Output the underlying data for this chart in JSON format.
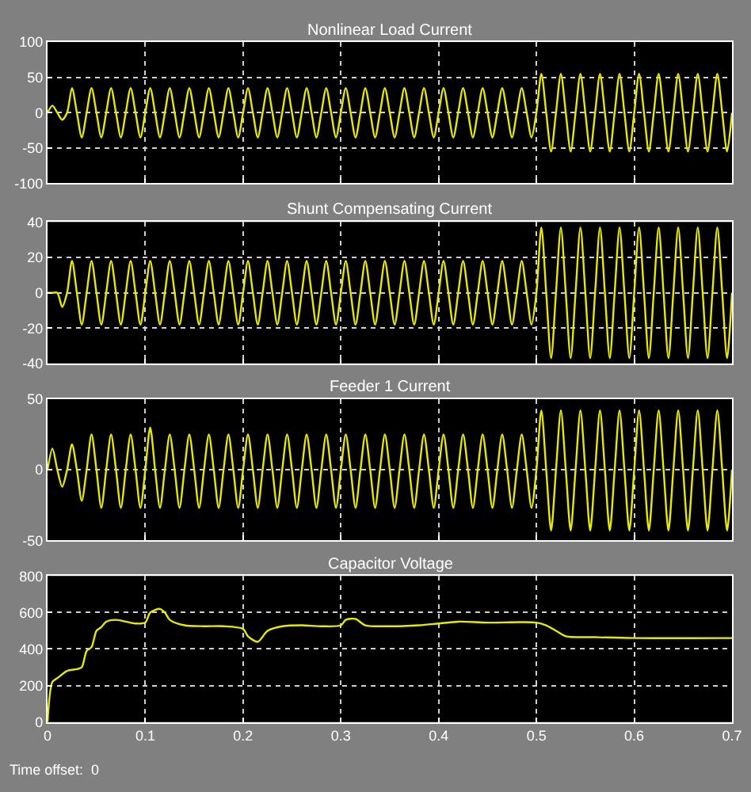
{
  "chart_data": [
    {
      "type": "line",
      "title": "Nonlinear Load Current",
      "color": "#e8e800",
      "grid": true,
      "tick_labels": "y",
      "xlim": [
        0,
        0.7
      ],
      "xticks": [
        0,
        0.1,
        0.2,
        0.3,
        0.4,
        0.5,
        0.6,
        0.7
      ],
      "ylim": [
        -100,
        100
      ],
      "yticks": [
        -100,
        -50,
        0,
        50,
        100
      ],
      "x": [
        0,
        0.005,
        0.01,
        0.015,
        0.02,
        0.025,
        0.03,
        0.035,
        0.04,
        0.045,
        0.05,
        0.055,
        0.06,
        0.065,
        0.07,
        0.075,
        0.08,
        0.085,
        0.09,
        0.095,
        0.1,
        0.105,
        0.11,
        0.115,
        0.12,
        0.125,
        0.13,
        0.135,
        0.14,
        0.145,
        0.15,
        0.155,
        0.16,
        0.165,
        0.17,
        0.175,
        0.18,
        0.185,
        0.19,
        0.195,
        0.2,
        0.205,
        0.21,
        0.215,
        0.22,
        0.225,
        0.23,
        0.235,
        0.24,
        0.245,
        0.25,
        0.255,
        0.26,
        0.265,
        0.27,
        0.275,
        0.28,
        0.285,
        0.29,
        0.295,
        0.3,
        0.305,
        0.31,
        0.315,
        0.32,
        0.325,
        0.33,
        0.335,
        0.34,
        0.345,
        0.35,
        0.355,
        0.36,
        0.365,
        0.37,
        0.375,
        0.38,
        0.385,
        0.39,
        0.395,
        0.4,
        0.405,
        0.41,
        0.415,
        0.42,
        0.425,
        0.43,
        0.435,
        0.44,
        0.445,
        0.45,
        0.455,
        0.46,
        0.465,
        0.47,
        0.475,
        0.48,
        0.485,
        0.49,
        0.495,
        0.5,
        0.505,
        0.51,
        0.515,
        0.52,
        0.525,
        0.53,
        0.535,
        0.54,
        0.545,
        0.55,
        0.555,
        0.56,
        0.565,
        0.57,
        0.575,
        0.58,
        0.585,
        0.59,
        0.595,
        0.6,
        0.605,
        0.61,
        0.615,
        0.62,
        0.625,
        0.63,
        0.635,
        0.64,
        0.645,
        0.65,
        0.655,
        0.66,
        0.665,
        0.67,
        0.675,
        0.68,
        0.685,
        0.69,
        0.695,
        0.7
      ],
      "values": [
        0,
        10,
        0,
        -10,
        0,
        35,
        0,
        -35,
        0,
        35,
        0,
        -35,
        0,
        35,
        0,
        -35,
        0,
        35,
        0,
        -35,
        0,
        35,
        0,
        -35,
        0,
        35,
        0,
        -35,
        0,
        35,
        0,
        -35,
        0,
        35,
        0,
        -35,
        0,
        35,
        0,
        -35,
        0,
        35,
        0,
        -35,
        0,
        35,
        0,
        -35,
        0,
        35,
        0,
        -35,
        0,
        35,
        0,
        -35,
        0,
        35,
        0,
        -35,
        0,
        35,
        0,
        -35,
        0,
        35,
        0,
        -35,
        0,
        35,
        0,
        -35,
        0,
        35,
        0,
        -35,
        0,
        35,
        0,
        -35,
        0,
        35,
        0,
        -35,
        0,
        35,
        0,
        -35,
        0,
        35,
        0,
        -35,
        0,
        35,
        0,
        -35,
        0,
        35,
        0,
        -35,
        0,
        55,
        0,
        -55,
        0,
        55,
        0,
        -55,
        0,
        55,
        0,
        -55,
        0,
        55,
        0,
        -55,
        0,
        55,
        0,
        -55,
        0,
        55,
        0,
        -55,
        0,
        55,
        0,
        -55,
        0,
        55,
        0,
        -55,
        0,
        55,
        0,
        -55,
        0,
        55,
        0,
        -55,
        0
      ]
    },
    {
      "type": "line",
      "title": "Shunt Compensating Current",
      "color": "#e8e800",
      "grid": true,
      "tick_labels": "y",
      "xlim": [
        0,
        0.7
      ],
      "xticks": [
        0,
        0.1,
        0.2,
        0.3,
        0.4,
        0.5,
        0.6,
        0.7
      ],
      "ylim": [
        -40,
        40
      ],
      "yticks": [
        -40,
        -20,
        0,
        20,
        40
      ],
      "x": [
        0,
        0.005,
        0.01,
        0.015,
        0.02,
        0.025,
        0.03,
        0.035,
        0.04,
        0.045,
        0.05,
        0.055,
        0.06,
        0.065,
        0.07,
        0.075,
        0.08,
        0.085,
        0.09,
        0.095,
        0.1,
        0.105,
        0.11,
        0.115,
        0.12,
        0.125,
        0.13,
        0.135,
        0.14,
        0.145,
        0.15,
        0.155,
        0.16,
        0.165,
        0.17,
        0.175,
        0.18,
        0.185,
        0.19,
        0.195,
        0.2,
        0.205,
        0.21,
        0.215,
        0.22,
        0.225,
        0.23,
        0.235,
        0.24,
        0.245,
        0.25,
        0.255,
        0.26,
        0.265,
        0.27,
        0.275,
        0.28,
        0.285,
        0.29,
        0.295,
        0.3,
        0.305,
        0.31,
        0.315,
        0.32,
        0.325,
        0.33,
        0.335,
        0.34,
        0.345,
        0.35,
        0.355,
        0.36,
        0.365,
        0.37,
        0.375,
        0.38,
        0.385,
        0.39,
        0.395,
        0.4,
        0.405,
        0.41,
        0.415,
        0.42,
        0.425,
        0.43,
        0.435,
        0.44,
        0.445,
        0.45,
        0.455,
        0.46,
        0.465,
        0.47,
        0.475,
        0.48,
        0.485,
        0.49,
        0.495,
        0.5,
        0.505,
        0.51,
        0.515,
        0.52,
        0.525,
        0.53,
        0.535,
        0.54,
        0.545,
        0.55,
        0.555,
        0.56,
        0.565,
        0.57,
        0.575,
        0.58,
        0.585,
        0.59,
        0.595,
        0.6,
        0.605,
        0.61,
        0.615,
        0.62,
        0.625,
        0.63,
        0.635,
        0.64,
        0.645,
        0.65,
        0.655,
        0.66,
        0.665,
        0.67,
        0.675,
        0.68,
        0.685,
        0.69,
        0.695,
        0.7
      ],
      "values": [
        0,
        0,
        0,
        -8,
        0,
        18,
        0,
        -18,
        0,
        18,
        0,
        -18,
        0,
        18,
        0,
        -18,
        0,
        18,
        0,
        -18,
        0,
        18,
        0,
        -18,
        0,
        18,
        0,
        -18,
        0,
        18,
        0,
        -18,
        0,
        18,
        0,
        -18,
        0,
        18,
        0,
        -18,
        0,
        18,
        0,
        -18,
        0,
        18,
        0,
        -18,
        0,
        18,
        0,
        -18,
        0,
        18,
        0,
        -18,
        0,
        18,
        0,
        -18,
        0,
        18,
        0,
        -18,
        0,
        18,
        0,
        -18,
        0,
        18,
        0,
        -18,
        0,
        18,
        0,
        -18,
        0,
        18,
        0,
        -18,
        0,
        18,
        0,
        -18,
        0,
        18,
        0,
        -18,
        0,
        18,
        0,
        -18,
        0,
        18,
        0,
        -18,
        0,
        18,
        0,
        -18,
        0,
        37,
        0,
        -37,
        0,
        37,
        0,
        -37,
        0,
        37,
        0,
        -37,
        0,
        37,
        0,
        -37,
        0,
        37,
        0,
        -37,
        0,
        37,
        0,
        -37,
        0,
        37,
        0,
        -37,
        0,
        37,
        0,
        -37,
        0,
        37,
        0,
        -37,
        0,
        37,
        0,
        -37,
        0
      ]
    },
    {
      "type": "line",
      "title": "Feeder 1 Current",
      "color": "#e8e800",
      "grid": true,
      "tick_labels": "y",
      "xlim": [
        0,
        0.7
      ],
      "xticks": [
        0,
        0.1,
        0.2,
        0.3,
        0.4,
        0.5,
        0.6,
        0.7
      ],
      "ylim": [
        -50,
        50
      ],
      "yticks": [
        -50,
        0,
        50
      ],
      "x": [
        0,
        0.005,
        0.01,
        0.015,
        0.02,
        0.025,
        0.03,
        0.035,
        0.04,
        0.045,
        0.05,
        0.055,
        0.06,
        0.065,
        0.07,
        0.075,
        0.08,
        0.085,
        0.09,
        0.095,
        0.1,
        0.105,
        0.11,
        0.115,
        0.12,
        0.125,
        0.13,
        0.135,
        0.14,
        0.145,
        0.15,
        0.155,
        0.16,
        0.165,
        0.17,
        0.175,
        0.18,
        0.185,
        0.19,
        0.195,
        0.2,
        0.205,
        0.21,
        0.215,
        0.22,
        0.225,
        0.23,
        0.235,
        0.24,
        0.245,
        0.25,
        0.255,
        0.26,
        0.265,
        0.27,
        0.275,
        0.28,
        0.285,
        0.29,
        0.295,
        0.3,
        0.305,
        0.31,
        0.315,
        0.32,
        0.325,
        0.33,
        0.335,
        0.34,
        0.345,
        0.35,
        0.355,
        0.36,
        0.365,
        0.37,
        0.375,
        0.38,
        0.385,
        0.39,
        0.395,
        0.4,
        0.405,
        0.41,
        0.415,
        0.42,
        0.425,
        0.43,
        0.435,
        0.44,
        0.445,
        0.45,
        0.455,
        0.46,
        0.465,
        0.47,
        0.475,
        0.48,
        0.485,
        0.49,
        0.495,
        0.5,
        0.505,
        0.51,
        0.515,
        0.52,
        0.525,
        0.53,
        0.535,
        0.54,
        0.545,
        0.55,
        0.555,
        0.56,
        0.565,
        0.57,
        0.575,
        0.58,
        0.585,
        0.59,
        0.595,
        0.6,
        0.605,
        0.61,
        0.615,
        0.62,
        0.625,
        0.63,
        0.635,
        0.64,
        0.645,
        0.65,
        0.655,
        0.66,
        0.665,
        0.67,
        0.675,
        0.68,
        0.685,
        0.69,
        0.695,
        0.7
      ],
      "values": [
        0,
        15,
        0,
        -12,
        0,
        18,
        0,
        -22,
        0,
        25,
        0,
        -27,
        0,
        25,
        0,
        -27,
        0,
        25,
        0,
        -27,
        0,
        30,
        0,
        -27,
        0,
        25,
        0,
        -27,
        0,
        25,
        0,
        -27,
        0,
        25,
        0,
        -27,
        0,
        25,
        0,
        -27,
        0,
        25,
        0,
        -27,
        0,
        25,
        0,
        -27,
        0,
        25,
        0,
        -27,
        0,
        25,
        0,
        -27,
        0,
        25,
        0,
        -27,
        0,
        25,
        0,
        -27,
        0,
        25,
        0,
        -27,
        0,
        25,
        0,
        -27,
        0,
        25,
        0,
        -27,
        0,
        25,
        0,
        -27,
        0,
        25,
        0,
        -27,
        0,
        25,
        0,
        -27,
        0,
        25,
        0,
        -27,
        0,
        25,
        0,
        -27,
        0,
        25,
        0,
        -27,
        0,
        42,
        0,
        -43,
        0,
        42,
        0,
        -43,
        0,
        42,
        0,
        -43,
        0,
        42,
        0,
        -43,
        0,
        42,
        0,
        -43,
        0,
        42,
        0,
        -43,
        0,
        42,
        0,
        -43,
        0,
        42,
        0,
        -43,
        0,
        42,
        0,
        -43,
        0,
        42,
        0,
        -43,
        0
      ]
    },
    {
      "type": "line",
      "title": "Capacitor Voltage",
      "color": "#e8e800",
      "grid": true,
      "xlim": [
        0,
        0.7
      ],
      "xticks": [
        0,
        0.1,
        0.2,
        0.3,
        0.4,
        0.5,
        0.6,
        0.7
      ],
      "ylim": [
        0,
        800
      ],
      "yticks": [
        0,
        200,
        400,
        600,
        800
      ],
      "annotations": [
        "Time offset:  0"
      ],
      "x": [
        0,
        0.005,
        0.01,
        0.02,
        0.03,
        0.035,
        0.04,
        0.045,
        0.05,
        0.055,
        0.06,
        0.07,
        0.08,
        0.09,
        0.1,
        0.105,
        0.115,
        0.12,
        0.125,
        0.14,
        0.16,
        0.18,
        0.2,
        0.205,
        0.215,
        0.225,
        0.24,
        0.26,
        0.28,
        0.3,
        0.305,
        0.315,
        0.325,
        0.35,
        0.38,
        0.4,
        0.42,
        0.45,
        0.5,
        0.51,
        0.52,
        0.53,
        0.56,
        0.6,
        0.7
      ],
      "values": [
        0,
        220,
        240,
        280,
        290,
        300,
        390,
        410,
        500,
        520,
        550,
        560,
        550,
        540,
        545,
        600,
        620,
        600,
        560,
        530,
        525,
        525,
        510,
        470,
        440,
        500,
        525,
        530,
        525,
        530,
        560,
        565,
        530,
        525,
        530,
        540,
        550,
        545,
        545,
        530,
        500,
        470,
        465,
        460,
        460
      ]
    }
  ]
}
